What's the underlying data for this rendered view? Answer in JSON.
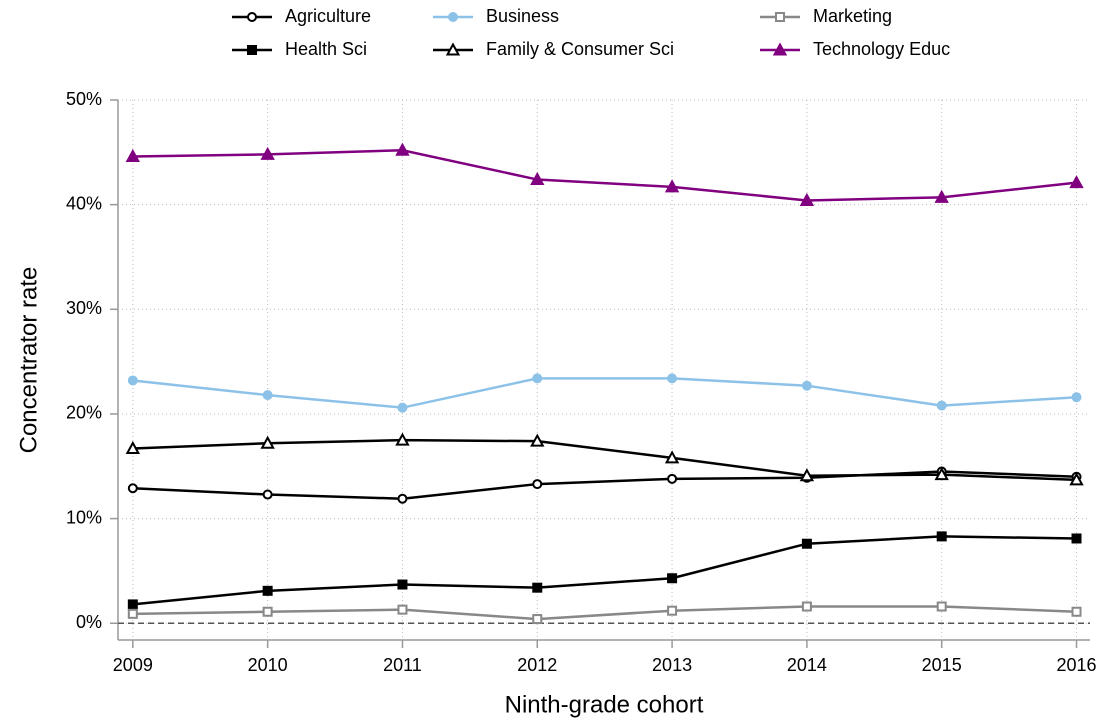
{
  "chart_data": {
    "type": "line",
    "xlabel": "Ninth-grade cohort",
    "ylabel": "Concentrator rate",
    "x": [
      2009,
      2010,
      2011,
      2012,
      2013,
      2014,
      2015,
      2016
    ],
    "series": [
      {
        "name": "Agriculture",
        "color": "#000000",
        "marker": "circle",
        "filled": false,
        "values": [
          12.9,
          12.3,
          11.9,
          13.3,
          13.8,
          13.9,
          14.5,
          14.0
        ]
      },
      {
        "name": "Health Sci",
        "color": "#000000",
        "marker": "square",
        "filled": true,
        "values": [
          1.8,
          3.1,
          3.7,
          3.4,
          4.3,
          7.6,
          8.3,
          8.1
        ]
      },
      {
        "name": "Business",
        "color": "#8dc2e8",
        "marker": "circle",
        "filled": true,
        "values": [
          23.2,
          21.8,
          20.6,
          23.4,
          23.4,
          22.7,
          20.8,
          21.6
        ]
      },
      {
        "name": "Family & Consumer Sci",
        "color": "#000000",
        "marker": "triangle",
        "filled": false,
        "values": [
          16.7,
          17.2,
          17.5,
          17.4,
          15.8,
          14.1,
          14.2,
          13.7
        ]
      },
      {
        "name": "Marketing",
        "color": "#888888",
        "marker": "square",
        "filled": false,
        "values": [
          0.9,
          1.1,
          1.3,
          0.4,
          1.2,
          1.6,
          1.6,
          1.1
        ]
      },
      {
        "name": "Technology Educ",
        "color": "#800080",
        "marker": "triangle",
        "filled": true,
        "values": [
          44.6,
          44.8,
          45.2,
          42.4,
          41.7,
          40.4,
          40.7,
          42.1
        ]
      }
    ],
    "xlim": [
      2008.89,
      2016.1
    ],
    "xticks": [
      2009,
      2010,
      2011,
      2012,
      2013,
      2014,
      2015,
      2016
    ],
    "ylim": [
      -1.6,
      50
    ],
    "yticks": [
      {
        "value": 0,
        "label": "0%"
      },
      {
        "value": 10,
        "label": "10%"
      },
      {
        "value": 20,
        "label": "20%"
      },
      {
        "value": 30,
        "label": "30%"
      },
      {
        "value": 40,
        "label": "40%"
      },
      {
        "value": 50,
        "label": "50%"
      }
    ],
    "grid": true,
    "hline": 0,
    "legend_rows": 2
  }
}
